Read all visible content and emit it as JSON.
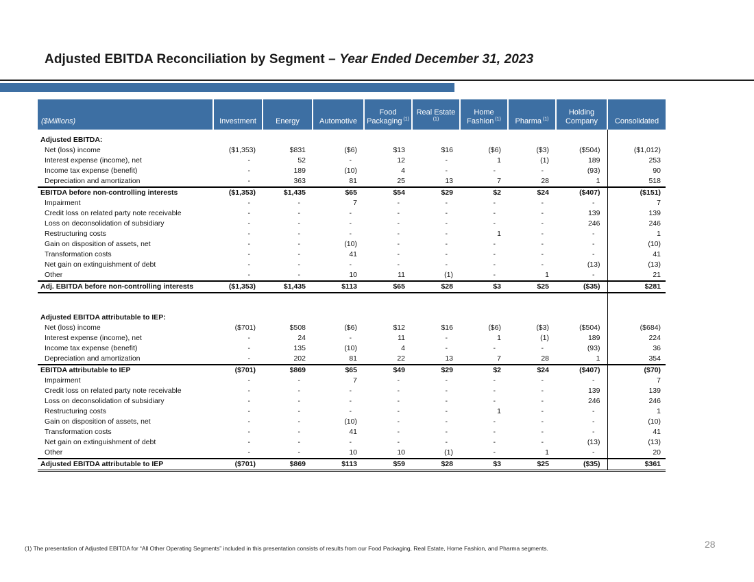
{
  "title": {
    "main": "Adjusted EBITDA Reconciliation by Segment – ",
    "emphasis": "Year Ended December 31, 2023"
  },
  "page_number": "28",
  "footnote": "(1) The presentation of Adjusted EBITDA for “All Other Operating Segments” included in this presentation consists of results from our Food Packaging, Real Estate, Home Fashion, and Pharma segments.",
  "colors": {
    "header_blue": "#3D6FA3",
    "accent_bar": "#3D6FA3",
    "page_number_gray": "#8C8C8C"
  },
  "table": {
    "unit_label": "($Millions)",
    "columns": [
      {
        "label": "Investment",
        "sup": ""
      },
      {
        "label": "Energy",
        "sup": ""
      },
      {
        "label": "Automotive",
        "sup": ""
      },
      {
        "label": "Food Packaging",
        "sup": "(1)"
      },
      {
        "label": "Real Estate",
        "sup": "(1)"
      },
      {
        "label": "Home Fashion",
        "sup": "(1)"
      },
      {
        "label": "Pharma",
        "sup": "(1)"
      },
      {
        "label": "Holding Company",
        "sup": ""
      },
      {
        "label": "Consolidated",
        "sup": ""
      }
    ],
    "rows": [
      {
        "label": "",
        "style": "lead",
        "values": [
          "",
          "",
          "",
          "",
          "",
          "",
          "",
          "",
          ""
        ]
      },
      {
        "label": "Adjusted EBITDA:",
        "style": "section",
        "values": [
          "",
          "",
          "",
          "",
          "",
          "",
          "",
          "",
          ""
        ]
      },
      {
        "label": "Net (loss) income",
        "style": "normal",
        "values": [
          "($1,353)",
          "$831",
          "($6)",
          "$13",
          "$16",
          "($6)",
          "($3)",
          "($504)",
          "($1,012)"
        ]
      },
      {
        "label": "Interest expense (income), net",
        "style": "normal",
        "values": [
          "-",
          "52",
          "-",
          "12",
          "-",
          "1",
          "(1)",
          "189",
          "253"
        ]
      },
      {
        "label": "Income tax expense (benefit)",
        "style": "normal",
        "values": [
          "-",
          "189",
          "(10)",
          "4",
          "-",
          "-",
          "-",
          "(93)",
          "90"
        ]
      },
      {
        "label": "Depreciation and amortization",
        "style": "normal",
        "values": [
          "-",
          "363",
          "81",
          "25",
          "13",
          "7",
          "28",
          "1",
          "518"
        ]
      },
      {
        "label": "EBITDA before non-controlling interests",
        "style": "subtotal",
        "values": [
          "($1,353)",
          "$1,435",
          "$65",
          "$54",
          "$29",
          "$2",
          "$24",
          "($407)",
          "($151)"
        ]
      },
      {
        "label": "Impairment",
        "style": "normal",
        "values": [
          "-",
          "-",
          "7",
          "-",
          "-",
          "-",
          "-",
          "-",
          "7"
        ]
      },
      {
        "label": "Credit loss on related party note receivable",
        "style": "normal",
        "values": [
          "-",
          "-",
          "-",
          "-",
          "-",
          "-",
          "-",
          "139",
          "139"
        ]
      },
      {
        "label": "Loss on deconsolidation of subsidiary",
        "style": "normal",
        "values": [
          "-",
          "-",
          "-",
          "-",
          "-",
          "-",
          "-",
          "246",
          "246"
        ]
      },
      {
        "label": "Restructuring costs",
        "style": "normal",
        "values": [
          "-",
          "-",
          "-",
          "-",
          "-",
          "1",
          "-",
          "-",
          "1"
        ]
      },
      {
        "label": "Gain on disposition of assets, net",
        "style": "normal",
        "values": [
          "-",
          "-",
          "(10)",
          "-",
          "-",
          "-",
          "-",
          "-",
          "(10)"
        ]
      },
      {
        "label": "Transformation costs",
        "style": "normal",
        "values": [
          "-",
          "-",
          "41",
          "-",
          "-",
          "-",
          "-",
          "-",
          "41"
        ]
      },
      {
        "label": "Net gain on extinguishment of debt",
        "style": "normal",
        "values": [
          "-",
          "-",
          "-",
          "-",
          "-",
          "-",
          "-",
          "(13)",
          "(13)"
        ]
      },
      {
        "label": "Other",
        "style": "normal",
        "values": [
          "-",
          "-",
          "10",
          "11",
          "(1)",
          "-",
          "1",
          "-",
          "21"
        ]
      },
      {
        "label": "Adj. EBITDA before non-controlling interests",
        "style": "total",
        "values": [
          "($1,353)",
          "$1,435",
          "$113",
          "$65",
          "$28",
          "$3",
          "$25",
          "($35)",
          "$281"
        ]
      },
      {
        "label": "",
        "style": "spacer",
        "values": [
          "",
          "",
          "",
          "",
          "",
          "",
          "",
          "",
          ""
        ]
      },
      {
        "label": "",
        "style": "spacer",
        "values": [
          "",
          "",
          "",
          "",
          "",
          "",
          "",
          "",
          ""
        ]
      },
      {
        "label": "Adjusted EBITDA attributable to IEP:",
        "style": "section",
        "values": [
          "",
          "",
          "",
          "",
          "",
          "",
          "",
          "",
          ""
        ]
      },
      {
        "label": "Net (loss) income",
        "style": "normal",
        "values": [
          "($701)",
          "$508",
          "($6)",
          "$12",
          "$16",
          "($6)",
          "($3)",
          "($504)",
          "($684)"
        ]
      },
      {
        "label": "Interest expense (income), net",
        "style": "normal",
        "values": [
          "-",
          "24",
          "-",
          "11",
          "-",
          "1",
          "(1)",
          "189",
          "224"
        ]
      },
      {
        "label": "Income tax expense (benefit)",
        "style": "normal",
        "values": [
          "-",
          "135",
          "(10)",
          "4",
          "-",
          "-",
          "-",
          "(93)",
          "36"
        ]
      },
      {
        "label": "Depreciation and amortization",
        "style": "normal",
        "values": [
          "-",
          "202",
          "81",
          "22",
          "13",
          "7",
          "28",
          "1",
          "354"
        ]
      },
      {
        "label": "EBITDA attributable to IEP",
        "style": "subtotal",
        "values": [
          "($701)",
          "$869",
          "$65",
          "$49",
          "$29",
          "$2",
          "$24",
          "($407)",
          "($70)"
        ]
      },
      {
        "label": "Impairment",
        "style": "normal",
        "values": [
          "-",
          "-",
          "7",
          "-",
          "-",
          "-",
          "-",
          "-",
          "7"
        ]
      },
      {
        "label": "Credit loss on related party note receivable",
        "style": "normal",
        "values": [
          "-",
          "-",
          "-",
          "-",
          "-",
          "-",
          "-",
          "139",
          "139"
        ]
      },
      {
        "label": "Loss on deconsolidation of subsidiary",
        "style": "normal",
        "values": [
          "-",
          "-",
          "-",
          "-",
          "-",
          "-",
          "-",
          "246",
          "246"
        ]
      },
      {
        "label": "Restructuring costs",
        "style": "normal",
        "values": [
          "-",
          "-",
          "-",
          "-",
          "-",
          "1",
          "-",
          "-",
          "1"
        ]
      },
      {
        "label": "Gain on disposition of assets, net",
        "style": "normal",
        "values": [
          "-",
          "-",
          "(10)",
          "-",
          "-",
          "-",
          "-",
          "-",
          "(10)"
        ]
      },
      {
        "label": "Transformation costs",
        "style": "normal",
        "values": [
          "-",
          "-",
          "41",
          "-",
          "-",
          "-",
          "-",
          "-",
          "41"
        ]
      },
      {
        "label": "Net gain on extinguishment of debt",
        "style": "normal",
        "values": [
          "-",
          "-",
          "-",
          "-",
          "-",
          "-",
          "-",
          "(13)",
          "(13)"
        ]
      },
      {
        "label": "Other",
        "style": "normal",
        "values": [
          "-",
          "-",
          "10",
          "10",
          "(1)",
          "-",
          "1",
          "-",
          "20"
        ]
      },
      {
        "label": "Adjusted EBITDA attributable to IEP",
        "style": "grand",
        "values": [
          "($701)",
          "$869",
          "$113",
          "$59",
          "$28",
          "$3",
          "$25",
          "($35)",
          "$361"
        ]
      }
    ]
  }
}
